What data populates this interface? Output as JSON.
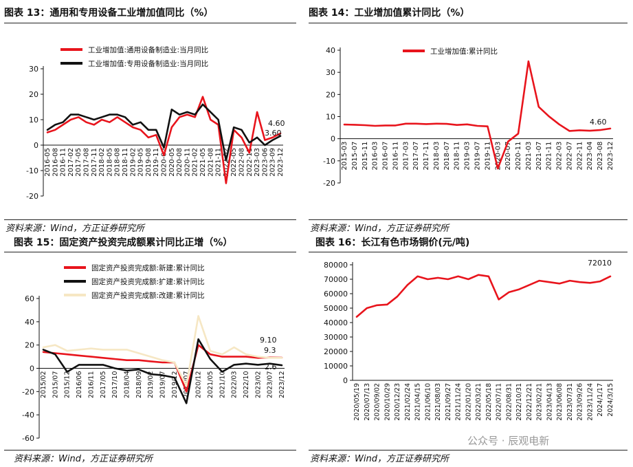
{
  "panels": [
    {
      "title": "图表 13：通用和专用设备工业增加值同比（%）",
      "source": "资料来源：Wind，方正证券研究所",
      "annotations": [
        "4.60",
        "3.60"
      ]
    },
    {
      "title": "图表 14：工业增加值累计同比（%）",
      "source": "资料来源：Wind，方正证券研究所",
      "annotations": [
        "4.60"
      ]
    },
    {
      "title": "图表 15：固定资产投资完成额累计同比正增（%）",
      "source": "资料来源：Wind，方正证券研究所",
      "annotations": [
        "9.10",
        "9.3",
        "2.6"
      ]
    },
    {
      "title": "图表 16：长江有色市场铜价(元/吨)",
      "source": "资料来源：Wind，方正证券研究所",
      "annotations": [
        "72010"
      ]
    }
  ],
  "watermark": "公众号 · 辰观电新",
  "chart_data": [
    {
      "type": "line",
      "ylim": [
        -20,
        30
      ],
      "yticks": [
        -20,
        -10,
        0,
        10,
        20,
        30
      ],
      "x": [
        "2016-05",
        "2016-08",
        "2016-11",
        "2017-02",
        "2017-05",
        "2017-08",
        "2017-11",
        "2018-02",
        "2018-05",
        "2018-08",
        "2018-11",
        "2019-02",
        "2019-05",
        "2019-08",
        "2019-11",
        "2020-02",
        "2020-05",
        "2020-08",
        "2020-11",
        "2021-02",
        "2021-05",
        "2021-08",
        "2021-11",
        "2022-02",
        "2022-05",
        "2022-08",
        "2022-11",
        "2023-03",
        "2023-06",
        "2023-09",
        "2023-12"
      ],
      "xtick_labels": [
        "2016-05",
        "2016-08",
        "2016-11",
        "2017-02",
        "2017-05",
        "2017-08",
        "2017-11",
        "2018-02",
        "2018-05",
        "2018-08",
        "2018-11",
        "2019-02",
        "2019-05",
        "2019-08",
        "2019-11",
        "2020-02",
        "2020-05",
        "2020-08",
        "2020-11",
        "2021-02",
        "2021-05",
        "2021-08",
        "2021-11",
        "2022-02",
        "2022-05",
        "2022-08",
        "2022-11",
        "2023-03",
        "2023-06",
        "2023-09",
        "2023-12"
      ],
      "legend_position": "top-left",
      "series": [
        {
          "name": "工业增加值:通用设备制造业:当月同比",
          "color": "#e8141c",
          "values": [
            5,
            6,
            8,
            10,
            11,
            9,
            8,
            10,
            9,
            11,
            9,
            7,
            6,
            3,
            4,
            -4,
            7,
            11,
            12,
            11,
            19,
            10,
            8,
            -15,
            6,
            3,
            -3,
            13,
            2,
            3,
            4.6
          ]
        },
        {
          "name": "工业增加值:专用设备制造业:当月同比",
          "color": "#111111",
          "values": [
            6,
            8,
            9,
            12,
            12,
            11,
            10,
            11,
            12,
            12,
            11,
            8,
            9,
            6,
            6,
            -1,
            14,
            12,
            13,
            12,
            16,
            13,
            10,
            -6,
            7,
            6,
            1,
            3,
            0,
            2,
            3.6
          ]
        }
      ]
    },
    {
      "type": "line",
      "ylim": [
        -20,
        40
      ],
      "yticks": [
        -20,
        -10,
        0,
        10,
        20,
        30,
        40
      ],
      "x": [
        "2015-03",
        "2015-07",
        "2015-11",
        "2016-03",
        "2016-07",
        "2016-11",
        "2017-03",
        "2017-07",
        "2017-11",
        "2018-03",
        "2018-07",
        "2018-11",
        "2019-03",
        "2019-07",
        "2019-11",
        "2020-03",
        "2020-07",
        "2020-11",
        "2021-03",
        "2021-07",
        "2021-11",
        "2022-03",
        "2022-07",
        "2022-11",
        "2023-04",
        "2023-08",
        "2023-12"
      ],
      "xtick_labels": [
        "2015-03",
        "2015-07",
        "2015-11",
        "2016-03",
        "2016-07",
        "2016-11",
        "2017-03",
        "2017-07",
        "2017-11",
        "2018-03",
        "2018-07",
        "2018-11",
        "2019-03",
        "2019-07",
        "2019-11",
        "2020-03",
        "2020-07",
        "2020-11",
        "2021-03",
        "2021-07",
        "2021-11",
        "2022-03",
        "2022-07",
        "2022-11",
        "2023-04",
        "2023-08",
        "2023-12"
      ],
      "legend_position": "top-left",
      "series": [
        {
          "name": "工业增加值:累计同比",
          "color": "#e8141c",
          "values": [
            6.4,
            6.3,
            6.1,
            5.8,
            6,
            6,
            6.8,
            6.8,
            6.6,
            6.8,
            6.7,
            6.2,
            6.5,
            5.8,
            5.6,
            -13.5,
            -1.3,
            2.3,
            35,
            14.4,
            10.1,
            6.5,
            3.5,
            3.8,
            3.6,
            3.9,
            4.6
          ]
        }
      ]
    },
    {
      "type": "line",
      "ylim": [
        -60,
        60
      ],
      "yticks": [
        -60,
        -40,
        -20,
        0,
        20,
        40,
        60
      ],
      "x": [
        "2015-02",
        "2015-07",
        "2015-12",
        "2016-06",
        "2016-11",
        "2017-05",
        "2017-10",
        "2018-04",
        "2018-09",
        "2019-02",
        "2019-07",
        "2019-12",
        "2020-07",
        "2020-12",
        "2021-05",
        "2021-10",
        "2022-03",
        "2022-10",
        "2023-02",
        "2023-07",
        "2023-12"
      ],
      "xtick_labels": [
        "2015/02",
        "2015/07",
        "2015/12",
        "2016/06",
        "2016/11",
        "2017/05",
        "2017/10",
        "2018/04",
        "2018/09",
        "2019/02",
        "2019/07",
        "2019/12",
        "2020/07",
        "2020/12",
        "2021/05",
        "2021/10",
        "2022/03",
        "2022/10",
        "2023/02",
        "2023/07",
        "2023/12"
      ],
      "legend_position": "top-left",
      "series": [
        {
          "name": "固定资产投资完成额:新建:累计同比",
          "color": "#e8141c",
          "values": [
            14,
            13,
            12,
            11,
            10,
            9,
            8,
            7,
            7,
            6,
            5,
            5,
            -20,
            20,
            12,
            10,
            10,
            10,
            9,
            9.3,
            9.1
          ]
        },
        {
          "name": "固定资产投资完成额:扩建:累计同比",
          "color": "#111111",
          "values": [
            16,
            12,
            -3,
            3,
            3,
            3,
            0,
            -2,
            -1,
            -5,
            -6,
            -8,
            -30,
            25,
            8,
            -3,
            3,
            4,
            3,
            4,
            2.6
          ]
        },
        {
          "name": "固定资产投资完成额:改建:累计同比",
          "color": "#f6e7c4",
          "values": [
            18,
            20,
            15,
            16,
            17,
            16,
            16,
            16,
            13,
            10,
            7,
            5,
            -15,
            45,
            15,
            12,
            18,
            12,
            10,
            9,
            9
          ]
        }
      ]
    },
    {
      "type": "line",
      "ylim": [
        0,
        80000
      ],
      "yticks": [
        0,
        10000,
        20000,
        30000,
        40000,
        50000,
        60000,
        70000,
        80000
      ],
      "x": [
        "2020-05-19",
        "2020-07-13",
        "2020-09-02",
        "2020-10-29",
        "2020-12-23",
        "2021-02-24",
        "2021-04-15",
        "2021-06-10",
        "2021-08-03",
        "2021-09-27",
        "2021-11-24",
        "2022-01-20",
        "2022-03-21",
        "2022-05-18",
        "2022-07-11",
        "2022-08-31",
        "2022-10-31",
        "2022-12-21",
        "2023-02-21",
        "2023-04-13",
        "2023-06-08",
        "2023-07-31",
        "2023-09-26",
        "2023-11-24",
        "2024-01-17",
        "2024-03-15"
      ],
      "xtick_labels": [
        "2020/05/19",
        "2020/07/13",
        "2020/09/02",
        "2020/10/29",
        "2020/12/23",
        "2021/02/24",
        "2021/04/15",
        "2021/06/10",
        "2021/08/03",
        "2021/09/27",
        "2021/11/24",
        "2022/01/20",
        "2022/03/21",
        "2022/05/18",
        "2022/07/11",
        "2022/08/31",
        "2022/10/31",
        "2022/12/21",
        "2023/02/21",
        "2023/04/13",
        "2023/06/08",
        "2023/07/31",
        "2023/09/26",
        "2023/11/24",
        "2024/1/17",
        "2024/3/15"
      ],
      "legend_position": "none",
      "series": [
        {
          "name": "",
          "color": "#e8141c",
          "values": [
            44000,
            50000,
            52000,
            52500,
            58000,
            66000,
            72000,
            70000,
            71000,
            70000,
            72000,
            70000,
            73000,
            72000,
            56000,
            61000,
            63000,
            66000,
            69000,
            68000,
            67000,
            69000,
            68000,
            67500,
            68500,
            72010
          ]
        }
      ]
    }
  ]
}
